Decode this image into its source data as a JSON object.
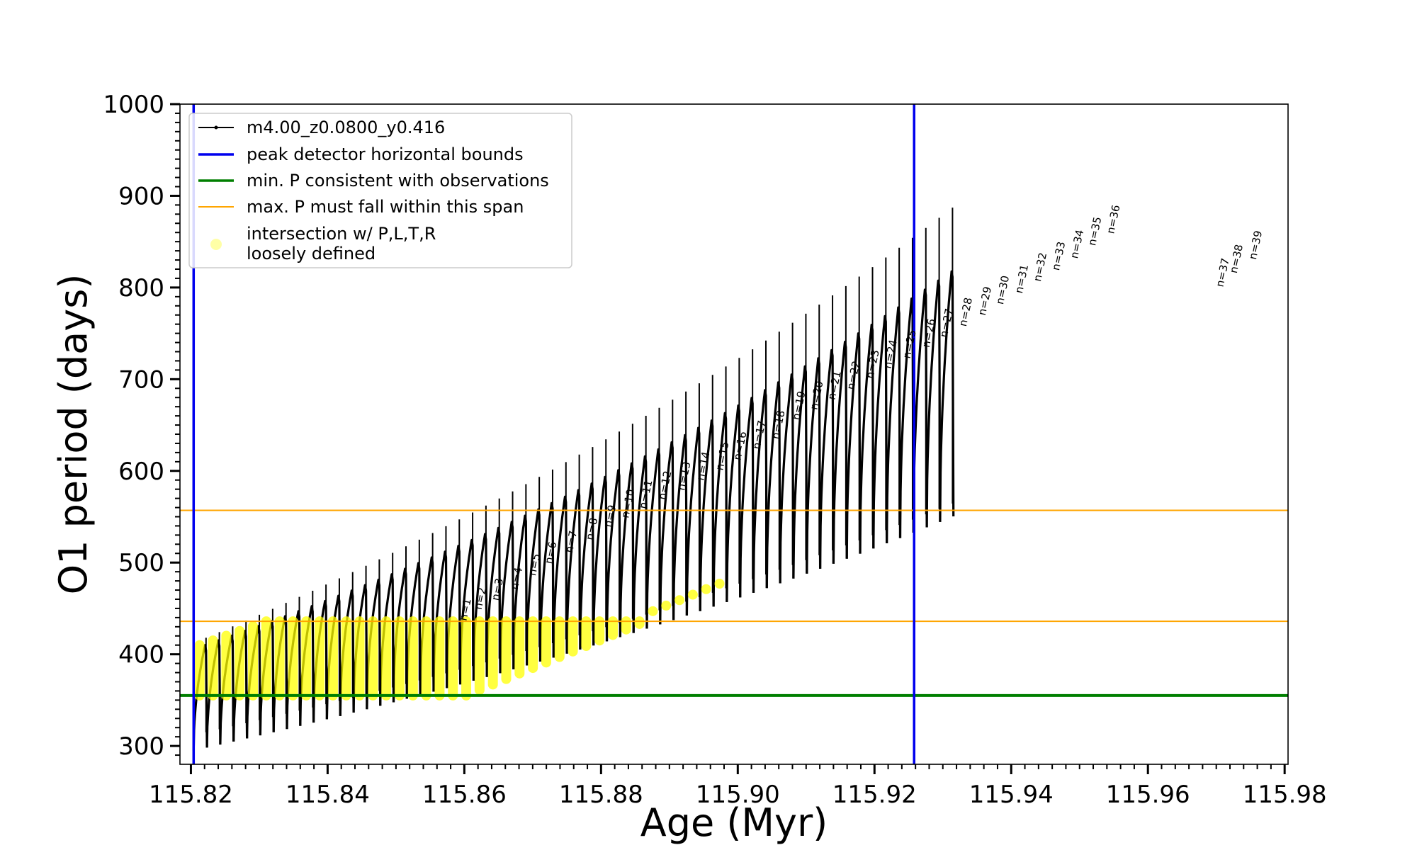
{
  "chart_data": {
    "type": "line",
    "xlabel": "Age (Myr)",
    "ylabel": "O1 period (days)",
    "xlim": [
      115.8184,
      115.9805
    ],
    "ylim": [
      280,
      1000
    ],
    "x_ticks": [
      "115.82",
      "115.84",
      "115.86",
      "115.88",
      "115.90",
      "115.92",
      "115.94",
      "115.96",
      "115.98"
    ],
    "y_ticks": [
      "300",
      "400",
      "500",
      "600",
      "700",
      "800",
      "900",
      "1000"
    ],
    "grid": false,
    "legend_placement": "top-left",
    "legend": [
      {
        "label": "m4.00_z0.0800_y0.416",
        "kind": "line-marker",
        "color": "#000000"
      },
      {
        "label": "peak detector horizontal bounds",
        "kind": "line",
        "color": "#0000ee"
      },
      {
        "label": "min. P consistent with observations",
        "kind": "line",
        "color": "#007f00"
      },
      {
        "label": "max. P must fall within this span",
        "kind": "line",
        "color": "#ffa500"
      },
      {
        "label": "intersection w/ P,L,T,R",
        "label2": "loosely defined",
        "kind": "marker",
        "color": "#ffff00"
      }
    ],
    "vertical_lines": [
      {
        "x": 115.8204,
        "color": "#0000ee"
      },
      {
        "x": 115.9258,
        "color": "#0000ee"
      }
    ],
    "horizontal_lines": [
      {
        "y": 355,
        "color": "#007f00"
      },
      {
        "y": 436,
        "color": "#ffa500"
      },
      {
        "y": 557,
        "color": "#ffa500"
      }
    ],
    "series_model": {
      "name": "m4.00_z0.0800_y0.416",
      "cycle_start_age": 115.8204,
      "cycle_interval": 0.00195,
      "num_cycles": 57,
      "peak_first": 410,
      "peak_ratio": 1.0124,
      "trough_first": 295,
      "trough_ratio": 1.011
    },
    "peak_labels": [
      {
        "n": 1,
        "x": 115.8603,
        "y": 436
      },
      {
        "n": 2,
        "x": 115.8625,
        "y": 448
      },
      {
        "n": 3,
        "x": 115.865,
        "y": 458
      },
      {
        "n": 4,
        "x": 115.8678,
        "y": 470
      },
      {
        "n": 5,
        "x": 115.8704,
        "y": 485
      },
      {
        "n": 6,
        "x": 115.8728,
        "y": 498
      },
      {
        "n": 7,
        "x": 115.8758,
        "y": 510
      },
      {
        "n": 8,
        "x": 115.8788,
        "y": 524
      },
      {
        "n": 9,
        "x": 115.8815,
        "y": 538
      },
      {
        "n": 10,
        "x": 115.884,
        "y": 548
      },
      {
        "n": 11,
        "x": 115.8866,
        "y": 558
      },
      {
        "n": 12,
        "x": 115.8894,
        "y": 568
      },
      {
        "n": 13,
        "x": 115.8922,
        "y": 578
      },
      {
        "n": 14,
        "x": 115.895,
        "y": 589
      },
      {
        "n": 15,
        "x": 115.8978,
        "y": 600
      },
      {
        "n": 16,
        "x": 115.9004,
        "y": 611
      },
      {
        "n": 17,
        "x": 115.9032,
        "y": 623
      },
      {
        "n": 18,
        "x": 115.906,
        "y": 634
      },
      {
        "n": 19,
        "x": 115.909,
        "y": 655
      },
      {
        "n": 20,
        "x": 115.9116,
        "y": 666
      },
      {
        "n": 21,
        "x": 115.9142,
        "y": 677
      },
      {
        "n": 22,
        "x": 115.917,
        "y": 688
      },
      {
        "n": 23,
        "x": 115.9198,
        "y": 700
      },
      {
        "n": 24,
        "x": 115.9224,
        "y": 711
      },
      {
        "n": 25,
        "x": 115.9252,
        "y": 722
      },
      {
        "n": 26,
        "x": 115.928,
        "y": 734
      },
      {
        "n": 27,
        "x": 115.9306,
        "y": 745
      },
      {
        "n": 28,
        "x": 115.9334,
        "y": 757
      },
      {
        "n": 29,
        "x": 115.9362,
        "y": 769
      },
      {
        "n": 30,
        "x": 115.9388,
        "y": 781
      },
      {
        "n": 31,
        "x": 115.9416,
        "y": 793
      },
      {
        "n": 32,
        "x": 115.9443,
        "y": 806
      },
      {
        "n": 33,
        "x": 115.947,
        "y": 818
      },
      {
        "n": 34,
        "x": 115.9497,
        "y": 831
      },
      {
        "n": 35,
        "x": 115.9523,
        "y": 845
      },
      {
        "n": 36,
        "x": 115.955,
        "y": 858
      },
      {
        "n": 37,
        "x": 115.971,
        "y": 800
      },
      {
        "n": 38,
        "x": 115.973,
        "y": 815
      },
      {
        "n": 39,
        "x": 115.9758,
        "y": 830
      }
    ]
  }
}
